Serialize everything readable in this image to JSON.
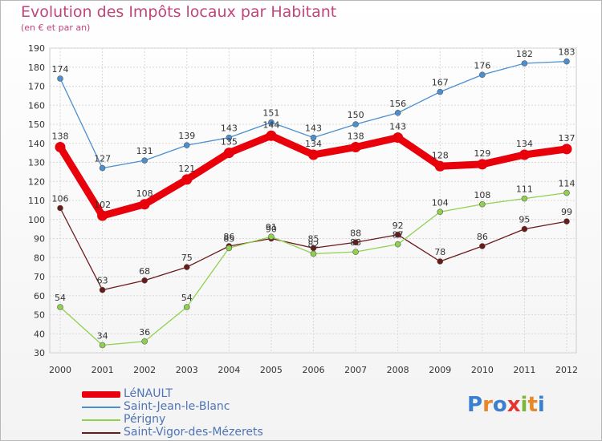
{
  "title": "Evolution des Impôts locaux par Habitant",
  "subtitle": "(en € et par an)",
  "logo": {
    "letters": [
      "P",
      "r",
      "o",
      "x",
      "i",
      "t",
      "i"
    ],
    "colors": [
      "#3a7fd0",
      "#e8872a",
      "#3a7fd0",
      "#e8342f",
      "#7ab83a",
      "#e8872a",
      "#3a7fd0"
    ]
  },
  "chart_data": {
    "type": "line",
    "x": [
      2000,
      2001,
      2002,
      2003,
      2004,
      2005,
      2006,
      2007,
      2008,
      2009,
      2010,
      2011,
      2012
    ],
    "ylim": [
      30,
      190
    ],
    "yticks": [
      30,
      40,
      50,
      60,
      70,
      80,
      90,
      100,
      110,
      120,
      130,
      140,
      150,
      160,
      170,
      180,
      190
    ],
    "grid": true,
    "legend": "bottom-left",
    "series": [
      {
        "name": "LéNAULT",
        "color": "#e8000b",
        "values": [
          138,
          102,
          108,
          121,
          135,
          144,
          134,
          138,
          143,
          128,
          129,
          134,
          137
        ]
      },
      {
        "name": "Saint-Jean-le-Blanc",
        "color": "#4c8fcf",
        "values": [
          174,
          127,
          131,
          139,
          143,
          151,
          143,
          150,
          156,
          167,
          176,
          182,
          183
        ]
      },
      {
        "name": "Périgny",
        "color": "#8fd14f",
        "values": [
          54,
          34,
          36,
          54,
          85,
          91,
          82,
          83,
          87,
          104,
          108,
          111,
          114
        ]
      },
      {
        "name": "Saint-Vigor-des-Mézerets",
        "color": "#6b1a1a",
        "values": [
          106,
          63,
          68,
          75,
          86,
          90,
          85,
          88,
          92,
          78,
          86,
          95,
          99
        ]
      }
    ]
  }
}
